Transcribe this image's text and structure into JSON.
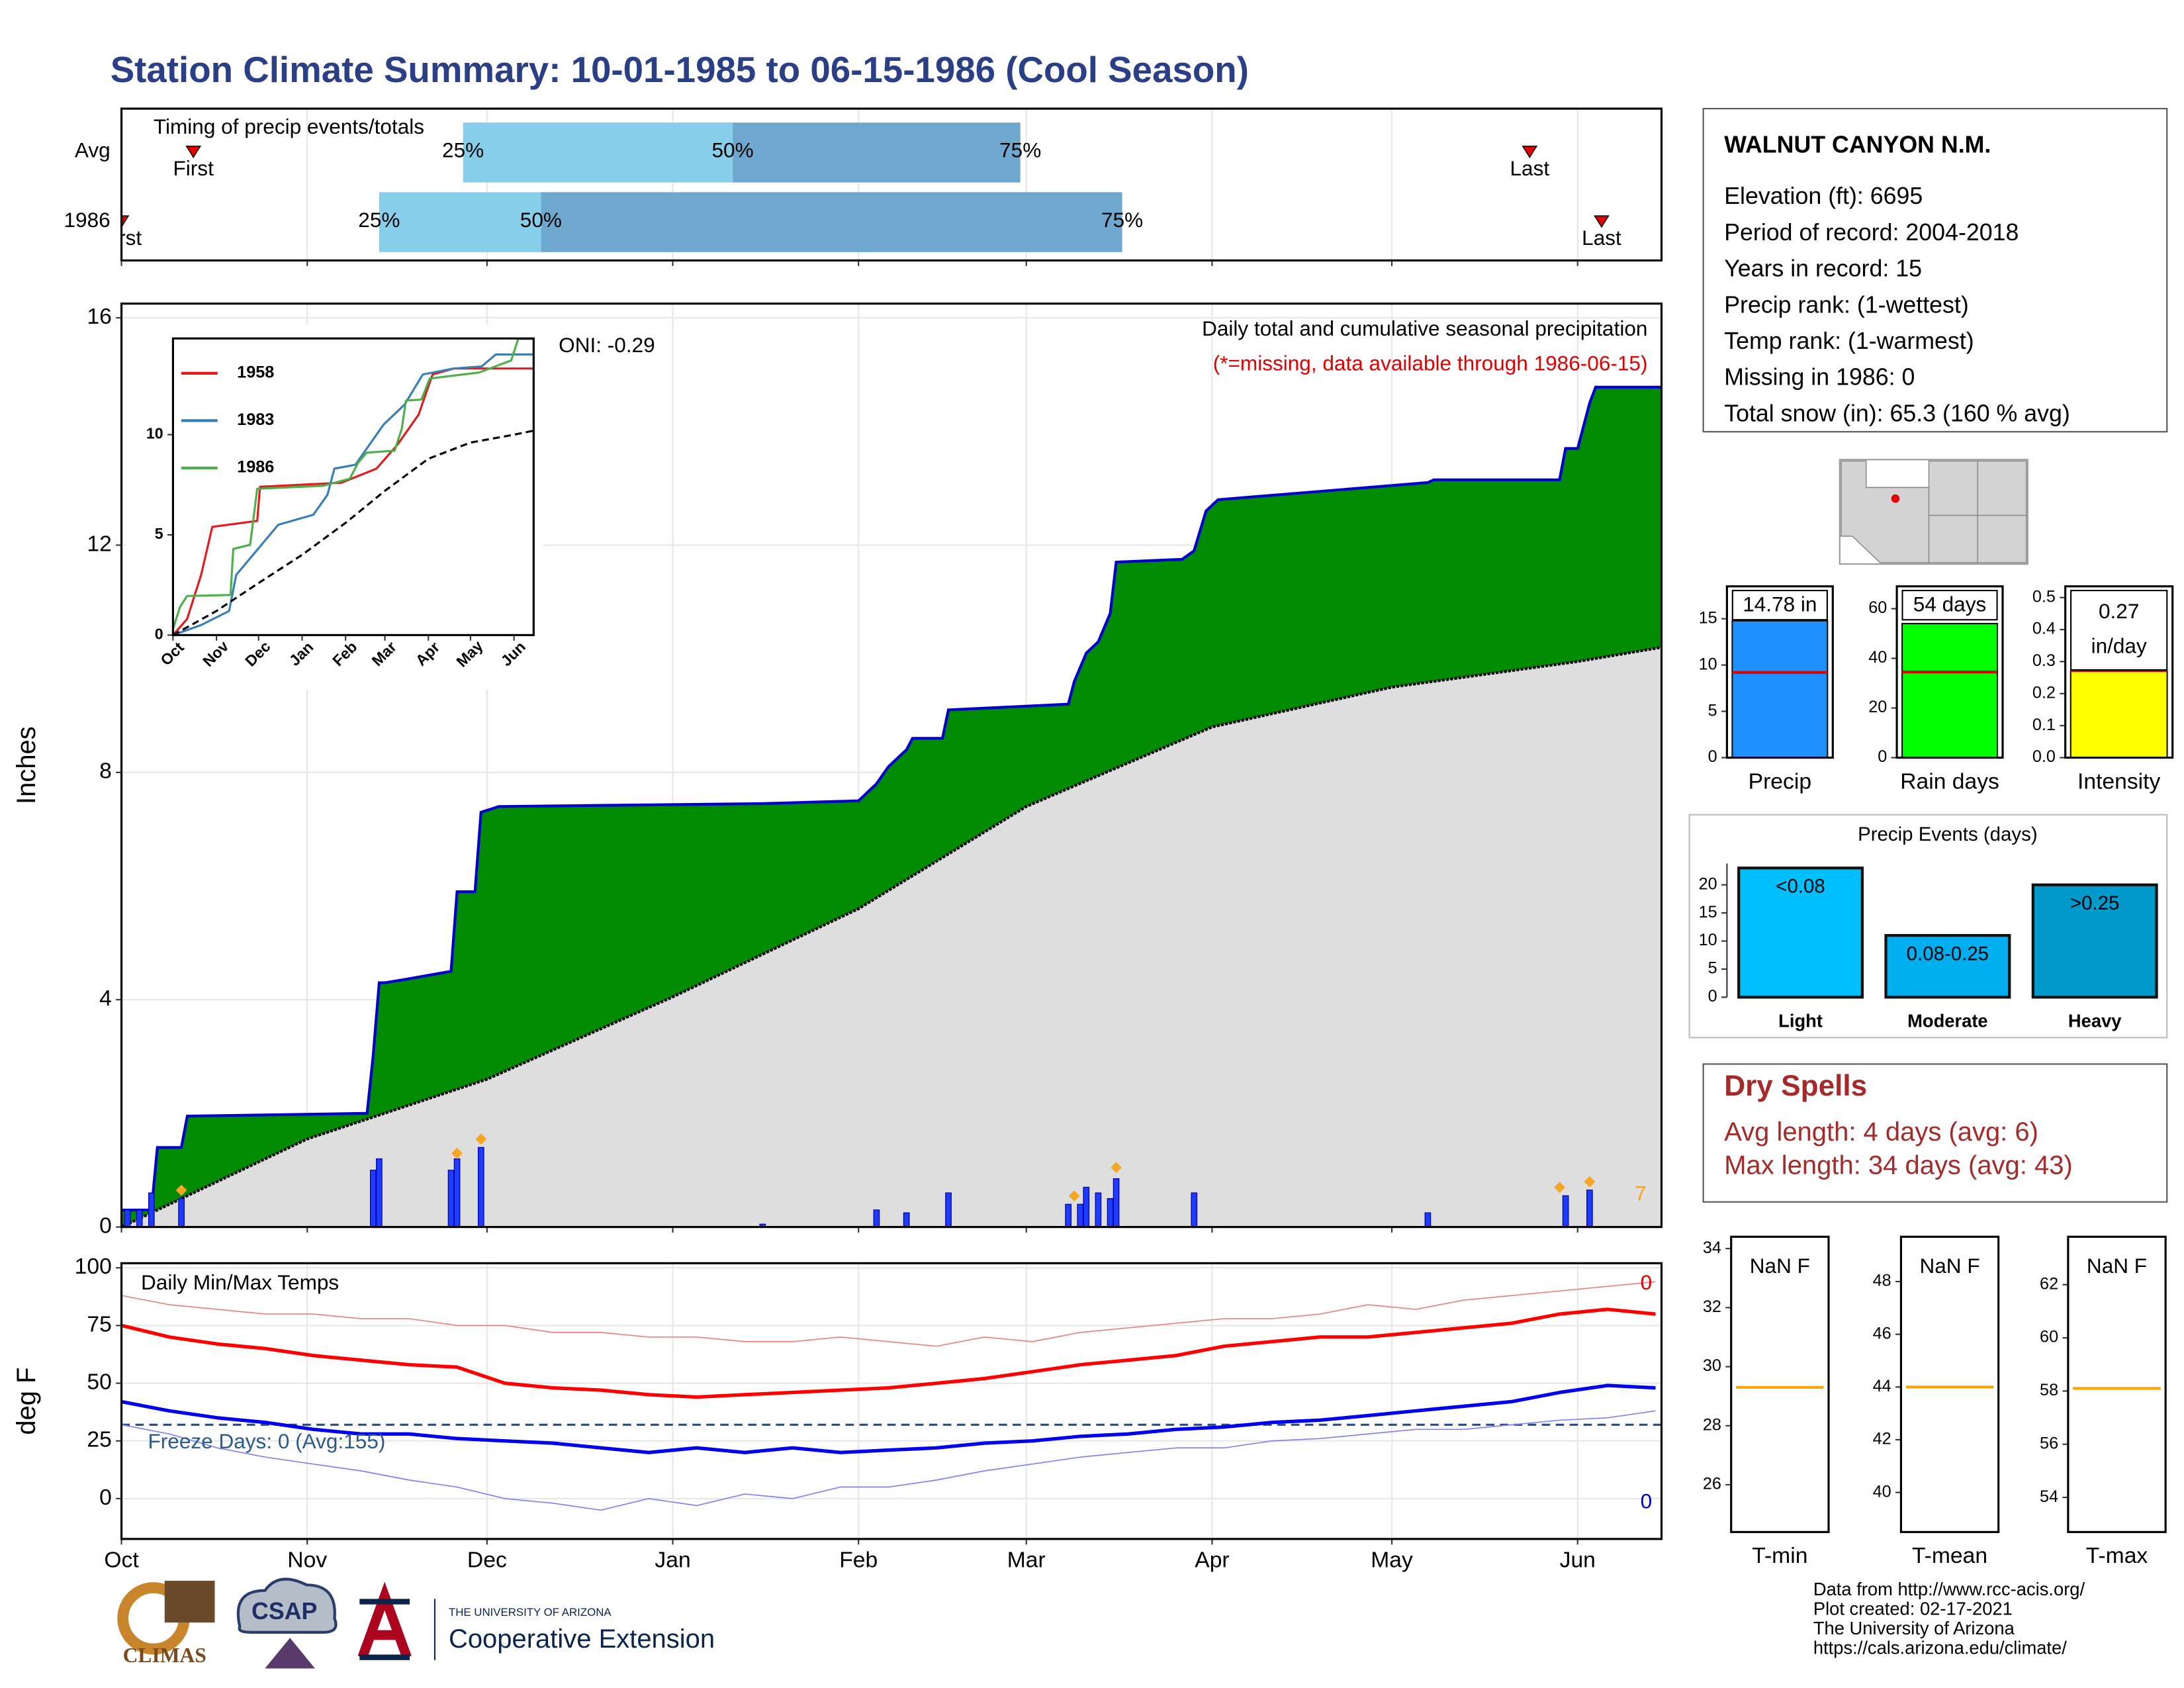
{
  "title": "Station Climate Summary: 10-01-1985 to 06-15-1986 (Cool Season)",
  "chart_data": [
    {
      "type": "timeline",
      "title": "Timing of precip events/totals",
      "categories": [
        "Avg",
        "1986"
      ],
      "first": [
        12,
        0
      ],
      "first_label": "First",
      "last": [
        235,
        247
      ],
      "last_label": "Last",
      "quantile_labels": [
        "25%",
        "50%",
        "75%"
      ],
      "quantiles": [
        [
          57,
          102,
          150
        ],
        [
          43,
          70,
          167
        ]
      ],
      "colors": [
        "#87ceeb",
        "#6fa8cf"
      ],
      "marker_color": "#e00000",
      "xlim": [
        0,
        257
      ],
      "xticks": [
        0,
        31,
        61,
        92,
        123,
        151,
        182,
        212,
        243
      ],
      "grid": true
    },
    {
      "type": "area",
      "ylabel": "Inches",
      "xlim": [
        0,
        257
      ],
      "ylim": [
        0,
        16.25
      ],
      "xticks": [
        0,
        31,
        61,
        92,
        123,
        151,
        182,
        212,
        243
      ],
      "yticks": [
        0,
        4,
        8,
        12,
        16
      ],
      "grid": true,
      "annotations": [
        "ONI: -0.29",
        "Daily total and cumulative seasonal precipitation",
        "(*=missing, data available through 1986-06-15)",
        "7"
      ],
      "cumulative": {
        "color": "#0000cd",
        "fill": "#008b00",
        "x": [
          0,
          5,
          6,
          10,
          11,
          41,
          42,
          43,
          44,
          47,
          55,
          56,
          59,
          60,
          63,
          107,
          123,
          126,
          128,
          131,
          132,
          137,
          138,
          158,
          159,
          161,
          163,
          165,
          166,
          177,
          179,
          181,
          183,
          218,
          219,
          240,
          241,
          243,
          245,
          246,
          257
        ],
        "values": [
          0.3,
          0.3,
          1.4,
          1.4,
          1.95,
          2.0,
          3.0,
          4.3,
          4.3,
          4.35,
          4.5,
          5.9,
          5.9,
          7.3,
          7.4,
          7.45,
          7.5,
          7.8,
          8.1,
          8.4,
          8.6,
          8.6,
          9.1,
          9.2,
          9.6,
          10.1,
          10.3,
          10.8,
          11.7,
          11.75,
          11.9,
          12.6,
          12.8,
          13.1,
          13.15,
          13.15,
          13.7,
          13.7,
          14.5,
          14.78,
          14.78
        ]
      },
      "average": {
        "color": "#000000",
        "fill": "#dedede",
        "x": [
          0,
          10,
          31,
          61,
          92,
          123,
          151,
          182,
          212,
          243,
          257
        ],
        "values": [
          0,
          0.5,
          1.55,
          2.6,
          4.05,
          5.6,
          7.4,
          8.8,
          9.5,
          9.95,
          10.2
        ]
      },
      "daily": {
        "color": "#1e3cff",
        "x": [
          1,
          3,
          5,
          10,
          42,
          43,
          55,
          56,
          60,
          107,
          126,
          131,
          138,
          158,
          160,
          161,
          163,
          165,
          166,
          179,
          218,
          241,
          245
        ],
        "values": [
          0.3,
          0.3,
          0.6,
          0.5,
          1.0,
          1.2,
          1.0,
          1.2,
          1.4,
          0.05,
          0.3,
          0.25,
          0.6,
          0.4,
          0.4,
          0.7,
          0.6,
          0.5,
          0.85,
          0.6,
          0.25,
          0.55,
          0.65
        ]
      },
      "snow": {
        "color": "#f5a623",
        "x": [
          10,
          56,
          60,
          159,
          166,
          240,
          245
        ],
        "values": [
          0.5,
          1.15,
          1.4,
          0.4,
          0.9,
          0.55,
          0.65
        ]
      }
    },
    {
      "type": "line",
      "xlim": [
        0,
        257
      ],
      "ylim": [
        0,
        14.8
      ],
      "yticks": [
        0,
        5,
        10
      ],
      "legend": "top-left",
      "xticks": [
        {
          "value": 0,
          "label": "Oct"
        },
        {
          "value": 31,
          "label": "Nov"
        },
        {
          "value": 61,
          "label": "Dec"
        },
        {
          "value": 92,
          "label": "Jan"
        },
        {
          "value": 123,
          "label": "Feb"
        },
        {
          "value": 151,
          "label": "Mar"
        },
        {
          "value": 182,
          "label": "Apr"
        },
        {
          "value": 212,
          "label": "May"
        },
        {
          "value": 243,
          "label": "Jun"
        }
      ],
      "series": [
        {
          "name": "1958",
          "color": "#e41a1c",
          "x": [
            0,
            10,
            20,
            28,
            60,
            62,
            120,
            145,
            160,
            175,
            185,
            200,
            257
          ],
          "values": [
            0,
            0.8,
            3,
            5.4,
            5.7,
            7.4,
            7.6,
            8.3,
            9.5,
            11,
            13,
            13.3,
            13.3
          ]
        },
        {
          "name": "1983",
          "color": "#377eb8",
          "x": [
            0,
            20,
            40,
            45,
            75,
            100,
            110,
            115,
            130,
            140,
            150,
            165,
            178,
            200,
            220,
            230,
            257
          ],
          "values": [
            0,
            0.5,
            1.2,
            3,
            5.5,
            6,
            7,
            8.3,
            8.5,
            9.5,
            10.5,
            11.5,
            13,
            13.3,
            13.4,
            14,
            14
          ]
        },
        {
          "name": "1986",
          "color": "#4daf4a",
          "x": [
            0,
            5,
            10,
            41,
            43,
            55,
            60,
            107,
            126,
            132,
            138,
            158,
            163,
            166,
            177,
            183,
            218,
            241,
            246,
            257
          ],
          "values": [
            0.3,
            1.4,
            1.95,
            2.0,
            4.3,
            4.5,
            7.3,
            7.45,
            7.8,
            8.6,
            9.1,
            9.2,
            10.3,
            11.7,
            11.75,
            12.8,
            13.1,
            13.7,
            14.78,
            14.78
          ]
        },
        {
          "color": "#000000",
          "dash": true,
          "x": [
            0,
            31,
            61,
            92,
            123,
            151,
            182,
            212,
            243,
            257
          ],
          "values": [
            0,
            1.2,
            2.6,
            4,
            5.6,
            7.2,
            8.8,
            9.6,
            10,
            10.2
          ]
        }
      ]
    },
    {
      "type": "line",
      "ylabel": "deg F",
      "xlim": [
        0,
        257
      ],
      "ylim": [
        -17.5,
        102
      ],
      "yticks": [
        0,
        25,
        50,
        75,
        100
      ],
      "grid": true,
      "xticks": [
        {
          "value": 0,
          "label": "Oct"
        },
        {
          "value": 31,
          "label": "Nov"
        },
        {
          "value": 61,
          "label": "Dec"
        },
        {
          "value": 92,
          "label": "Jan"
        },
        {
          "value": 123,
          "label": "Feb"
        },
        {
          "value": 151,
          "label": "Mar"
        },
        {
          "value": 182,
          "label": "Apr"
        },
        {
          "value": 212,
          "label": "May"
        },
        {
          "value": 243,
          "label": "Jun"
        }
      ],
      "annotations": [
        "Daily Min/Max Temps",
        "Freeze Days: 0 (Avg:155)",
        "0",
        "0"
      ],
      "freeze": 32,
      "x": [
        0,
        8,
        16,
        24,
        32,
        40,
        48,
        56,
        64,
        72,
        80,
        88,
        96,
        104,
        112,
        120,
        128,
        136,
        144,
        152,
        160,
        168,
        176,
        184,
        192,
        200,
        208,
        216,
        224,
        232,
        240,
        248,
        256
      ],
      "series": [
        {
          "color": "#f08080",
          "width": 0.8,
          "values": [
            88,
            84,
            82,
            80,
            80,
            78,
            78,
            75,
            75,
            72,
            72,
            70,
            70,
            68,
            68,
            70,
            68,
            66,
            70,
            68,
            72,
            74,
            76,
            78,
            78,
            80,
            84,
            82,
            86,
            88,
            90,
            92,
            94
          ]
        },
        {
          "color": "#ff0000",
          "width": 2.5,
          "values": [
            75,
            70,
            67,
            65,
            62,
            60,
            58,
            57,
            50,
            48,
            47,
            45,
            44,
            45,
            46,
            47,
            48,
            50,
            52,
            55,
            58,
            60,
            62,
            66,
            68,
            70,
            70,
            72,
            74,
            76,
            80,
            82,
            80
          ]
        },
        {
          "color": "#0000ee",
          "width": 2.5,
          "values": [
            42,
            38,
            35,
            33,
            30,
            28,
            28,
            26,
            25,
            24,
            22,
            20,
            22,
            20,
            22,
            20,
            21,
            22,
            24,
            25,
            27,
            28,
            30,
            31,
            33,
            34,
            36,
            38,
            40,
            42,
            46,
            49,
            48
          ]
        },
        {
          "color": "#8080ff",
          "width": 0.8,
          "values": [
            32,
            28,
            22,
            18,
            15,
            12,
            8,
            5,
            0,
            -2,
            -5,
            0,
            -3,
            2,
            0,
            5,
            5,
            8,
            12,
            15,
            18,
            20,
            22,
            22,
            25,
            26,
            28,
            30,
            30,
            32,
            34,
            35,
            38
          ]
        }
      ]
    },
    {
      "type": "bar",
      "categories": [
        "Precip"
      ],
      "values": [
        14.78
      ],
      "value_labels": [
        "14.78 in"
      ],
      "avg": [
        9.2
      ],
      "avg_color": "#e00000",
      "color": "#1e90ff",
      "ylim": [
        0,
        18.5
      ],
      "yticks": [
        0,
        5,
        10,
        15
      ]
    },
    {
      "type": "bar",
      "categories": [
        "Rain days"
      ],
      "values": [
        54
      ],
      "value_labels": [
        "54 days"
      ],
      "avg": [
        34.5
      ],
      "avg_color": "#e00000",
      "color": "#00ff00",
      "ylim": [
        0,
        69
      ],
      "yticks": [
        0,
        20,
        40,
        60
      ]
    },
    {
      "type": "bar",
      "categories": [
        "Intensity"
      ],
      "values": [
        0.27
      ],
      "unit_label": "in/day",
      "avg": [
        0.272
      ],
      "avg_color": "#e00000",
      "color": "#ffff00",
      "ylim": [
        0,
        0.535
      ],
      "yticks": [
        {
          "value": 0,
          "label": "0.0"
        },
        0.1,
        0.2,
        0.3,
        0.4,
        0.5
      ]
    },
    {
      "type": "bar",
      "title": "Precip Events (days)",
      "categories": [
        "Light",
        "Moderate",
        "Heavy"
      ],
      "values": [
        23,
        11,
        20
      ],
      "bin_labels": [
        "<0.08",
        "0.08-0.25",
        ">0.25"
      ],
      "colors": [
        "#00bfff",
        "#00aeef",
        "#0099cc"
      ],
      "ylim": [
        0,
        23.8
      ],
      "yticks": [
        0,
        5,
        10,
        15,
        20
      ]
    },
    {
      "type": "bar",
      "categories": [
        "T-min"
      ],
      "values": [
        null
      ],
      "value_labels": [
        "NaN F"
      ],
      "avg": [
        29.3
      ],
      "avg_color": "#ffa500",
      "ylim": [
        24.4,
        34.4
      ],
      "yticks": [
        26,
        28,
        30,
        32,
        34
      ]
    },
    {
      "type": "bar",
      "categories": [
        "T-mean"
      ],
      "values": [
        null
      ],
      "value_labels": [
        "NaN F"
      ],
      "avg": [
        44.0
      ],
      "avg_color": "#ffa500",
      "ylim": [
        38.5,
        49.7
      ],
      "yticks": [
        40,
        42,
        44,
        46,
        48
      ]
    },
    {
      "type": "bar",
      "categories": [
        "T-max"
      ],
      "values": [
        null
      ],
      "value_labels": [
        "NaN F"
      ],
      "avg": [
        58.1
      ],
      "avg_color": "#ffa500",
      "ylim": [
        52.7,
        63.8
      ],
      "yticks": [
        54,
        56,
        58,
        60,
        62
      ]
    }
  ],
  "station": {
    "name": "WALNUT CANYON N.M.",
    "lines": [
      "Elevation (ft): 6695",
      "Period of record: 2004-2018",
      "Years in record: 15",
      "Precip rank:  (1-wettest)",
      "Temp rank:  (1-warmest)",
      "Missing in 1986: 0",
      "Total snow (in): 65.3 (160 % avg)"
    ]
  },
  "dry_spells": {
    "title": "Dry Spells",
    "lines": [
      "Avg length: 4 days (avg: 6)",
      "Max length: 34 days (avg: 43)"
    ]
  },
  "footer": [
    "Data from http://www.rcc-acis.org/",
    "Plot created: 02-17-2021",
    "The University of Arizona",
    "https://cals.arizona.edu/climate/"
  ],
  "logos": [
    "CLIMAS",
    "CSAP",
    "THE UNIVERSITY OF ARIZONA",
    "Cooperative Extension"
  ]
}
